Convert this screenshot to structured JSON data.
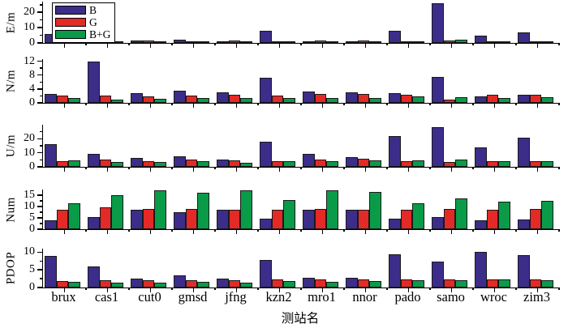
{
  "figure": {
    "xlabel": "测站名",
    "background": "#ffffff",
    "axis_color": "#000000",
    "stations": [
      "brux",
      "cas1",
      "cut0",
      "gmsd",
      "jfng",
      "kzn2",
      "mro1",
      "nnor",
      "pado",
      "samo",
      "wroc",
      "zim3"
    ],
    "legend": [
      {
        "label": "B",
        "color": "#3c2d8a"
      },
      {
        "label": "G",
        "color": "#e42a26"
      },
      {
        "label": "B+G",
        "color": "#0a9b49"
      }
    ],
    "legend_position": "top-left"
  },
  "chart_data": [
    {
      "type": "bar",
      "title": "",
      "ylabel": "E/m",
      "ylim": [
        0,
        27
      ],
      "yticks": [
        0,
        10,
        20
      ],
      "yticks_minor": [
        5,
        15,
        25
      ],
      "grid": false,
      "categories": [
        "brux",
        "cas1",
        "cut0",
        "gmsd",
        "jfng",
        "kzn2",
        "mro1",
        "nnor",
        "pado",
        "samo",
        "wroc",
        "zim3"
      ],
      "series": [
        {
          "name": "B",
          "values": [
            6,
            5,
            1.5,
            2,
            1.2,
            8,
            1.2,
            1,
            8,
            26,
            5,
            7
          ]
        },
        {
          "name": "G",
          "values": [
            0.8,
            0.8,
            1.6,
            1,
            1.5,
            1,
            1.6,
            1.6,
            0.6,
            1.5,
            0.8,
            0.9
          ]
        },
        {
          "name": "B+G",
          "values": [
            0.8,
            0.9,
            1,
            1,
            1,
            1,
            1,
            1,
            0.9,
            1.9,
            0.8,
            0.9
          ]
        }
      ]
    },
    {
      "type": "bar",
      "title": "",
      "ylabel": "N/m",
      "ylim": [
        0,
        12.6
      ],
      "yticks": [
        0,
        4,
        8,
        12
      ],
      "yticks_minor": [
        2,
        6,
        10
      ],
      "grid": false,
      "categories": [
        "brux",
        "cas1",
        "cut0",
        "gmsd",
        "jfng",
        "kzn2",
        "mro1",
        "nnor",
        "pado",
        "samo",
        "wroc",
        "zim3"
      ],
      "series": [
        {
          "name": "B",
          "values": [
            2.5,
            11.8,
            2.8,
            3.5,
            3.0,
            7.2,
            3.2,
            3.0,
            2.9,
            7.5,
            1.9,
            2.3
          ]
        },
        {
          "name": "G",
          "values": [
            2.2,
            2.0,
            1.9,
            2.2,
            2.4,
            2.2,
            2.5,
            2.5,
            2.3,
            1.0,
            2.3,
            2.3
          ]
        },
        {
          "name": "B+G",
          "values": [
            1.5,
            1.0,
            1.2,
            1.3,
            1.5,
            1.5,
            1.3,
            1.5,
            1.8,
            1.6,
            1.4,
            1.6
          ]
        }
      ]
    },
    {
      "type": "bar",
      "title": "",
      "ylabel": "U/m",
      "ylim": [
        0,
        30
      ],
      "yticks": [
        0,
        10,
        20
      ],
      "yticks_minor": [
        5,
        15,
        25
      ],
      "grid": false,
      "categories": [
        "brux",
        "cas1",
        "cut0",
        "gmsd",
        "jfng",
        "kzn2",
        "mro1",
        "nnor",
        "pado",
        "samo",
        "wroc",
        "zim3"
      ],
      "series": [
        {
          "name": "B",
          "values": [
            16,
            9,
            6.5,
            7.5,
            5,
            18,
            9,
            7,
            22,
            28.5,
            14,
            21
          ]
        },
        {
          "name": "G",
          "values": [
            4,
            5,
            4,
            5,
            4.5,
            4,
            5,
            5.5,
            3.8,
            3.5,
            3.8,
            3.8
          ]
        },
        {
          "name": "B+G",
          "values": [
            4.5,
            3.5,
            3.5,
            4,
            3,
            4,
            4,
            4.5,
            4.5,
            5,
            4,
            4
          ]
        }
      ]
    },
    {
      "type": "bar",
      "title": "",
      "ylabel": "Num",
      "ylim": [
        0,
        17.5
      ],
      "yticks": [
        0,
        5,
        10,
        15
      ],
      "yticks_minor": [
        2.5,
        7.5,
        12.5
      ],
      "grid": false,
      "categories": [
        "brux",
        "cas1",
        "cut0",
        "gmsd",
        "jfng",
        "kzn2",
        "mro1",
        "nnor",
        "pado",
        "samo",
        "wroc",
        "zim3"
      ],
      "series": [
        {
          "name": "B",
          "values": [
            4,
            5.2,
            8.5,
            7.5,
            8.5,
            4.8,
            8.5,
            8.5,
            4.5,
            5.5,
            4,
            4.2
          ]
        },
        {
          "name": "G",
          "values": [
            8.5,
            9.8,
            9,
            8.8,
            8.5,
            8.6,
            9,
            8.4,
            8.6,
            9,
            8.4,
            9
          ]
        },
        {
          "name": "B+G",
          "values": [
            11.5,
            15,
            17,
            16,
            17.2,
            13,
            17,
            16.5,
            11.5,
            13.5,
            12,
            12.5
          ]
        }
      ]
    },
    {
      "type": "bar",
      "title": "",
      "ylabel": "PDOP",
      "ylim": [
        0,
        11
      ],
      "yticks": [
        0,
        5,
        10
      ],
      "yticks_minor": [
        2.5,
        7.5
      ],
      "grid": false,
      "categories": [
        "brux",
        "cas1",
        "cut0",
        "gmsd",
        "jfng",
        "kzn2",
        "mro1",
        "nnor",
        "pado",
        "samo",
        "wroc",
        "zim3"
      ],
      "series": [
        {
          "name": "B",
          "values": [
            9,
            6,
            2.5,
            3.4,
            2.6,
            7.8,
            2.7,
            2.8,
            9.5,
            7.4,
            10.2,
            9.2
          ]
        },
        {
          "name": "G",
          "values": [
            1.9,
            2.1,
            2.0,
            2.0,
            2.0,
            2.2,
            2.2,
            2.4,
            2.2,
            2.4,
            2.3,
            2.3
          ]
        },
        {
          "name": "B+G",
          "values": [
            1.6,
            1.3,
            1.4,
            1.5,
            1.4,
            1.8,
            1.6,
            1.8,
            2.0,
            2.1,
            2.2,
            2.0
          ]
        }
      ]
    }
  ]
}
